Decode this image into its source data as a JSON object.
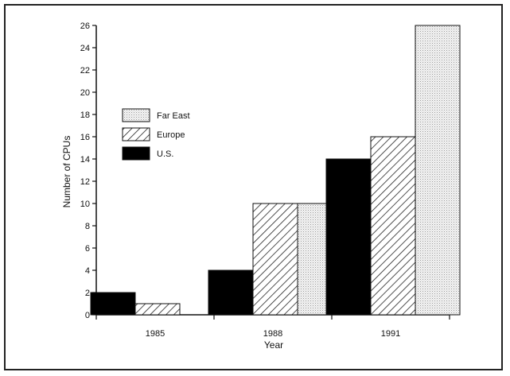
{
  "chart_data": {
    "type": "bar",
    "title": "",
    "xlabel": "Year",
    "ylabel": "Number of CPUs",
    "categories": [
      "1985",
      "1988",
      "1991"
    ],
    "ylim": [
      0,
      26
    ],
    "yticks": [
      0,
      2,
      4,
      6,
      8,
      10,
      12,
      14,
      16,
      18,
      20,
      22,
      24,
      26
    ],
    "grid": false,
    "legend_position": "left",
    "series": [
      {
        "name": "U.S.",
        "values": [
          2,
          4,
          14
        ],
        "fill": "solid",
        "color": "#000000"
      },
      {
        "name": "Europe",
        "values": [
          1,
          10,
          16
        ],
        "fill": "diagonal-hatch",
        "color": "#333333"
      },
      {
        "name": "Far East",
        "values": [
          0,
          10,
          26
        ],
        "fill": "light-stipple",
        "color": "#e6e6e6"
      }
    ],
    "legend_order": [
      "Far East",
      "Europe",
      "U.S."
    ]
  }
}
